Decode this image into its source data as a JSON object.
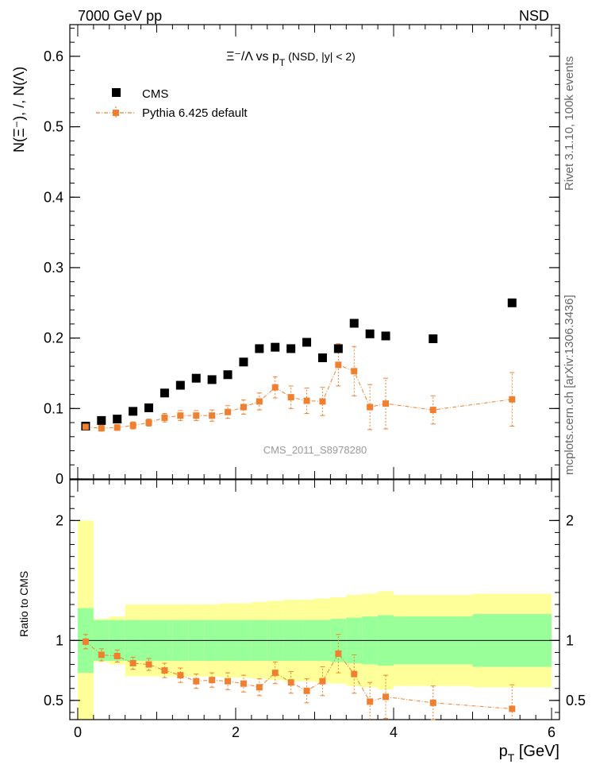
{
  "header": {
    "left": "7000 GeV pp",
    "right": "NSD"
  },
  "side_labels": {
    "rivet": "Rivet 3.1.10,  100k events",
    "mcplots": "mcplots.cern.ch [arXiv:1306.3436]"
  },
  "watermark": "CMS_2011_S8978280",
  "colors": {
    "mc": "#f08030",
    "band_inner": "#99ff99",
    "band_outer": "#ffff99",
    "data": "#000000"
  },
  "chart_data": [
    {
      "type": "scatter",
      "title_main": "Ξ⁻/Λ  vs p",
      "title_sub": "T",
      "title_tail": " (NSD, |y| < 2)",
      "ylabel": "N(Ξ⁻), /, N(Λ)",
      "xlim": [
        -0.1,
        6.1
      ],
      "ylim": [
        0,
        0.645
      ],
      "yticks": [
        0,
        0.1,
        0.2,
        0.3,
        0.4,
        0.5,
        0.6
      ],
      "ytick_labels": [
        "0",
        "0.1",
        "0.2",
        "0.3",
        "0.4",
        "0.5",
        "0.6"
      ],
      "legend": {
        "position": "top-left",
        "entries": [
          "CMS",
          "Pythia 6.425 default"
        ]
      },
      "series": [
        {
          "name": "CMS",
          "x": [
            0.1,
            0.3,
            0.5,
            0.7,
            0.9,
            1.1,
            1.3,
            1.5,
            1.7,
            1.9,
            2.1,
            2.3,
            2.5,
            2.7,
            2.9,
            3.1,
            3.3,
            3.5,
            3.7,
            3.9,
            4.5,
            5.5
          ],
          "y": [
            0.075,
            0.083,
            0.085,
            0.096,
            0.101,
            0.122,
            0.133,
            0.143,
            0.141,
            0.148,
            0.166,
            0.185,
            0.187,
            0.185,
            0.194,
            0.172,
            0.185,
            0.221,
            0.206,
            0.203,
            0.199,
            0.25
          ]
        },
        {
          "name": "Pythia 6.425 default",
          "x": [
            0.1,
            0.3,
            0.5,
            0.7,
            0.9,
            1.1,
            1.3,
            1.5,
            1.7,
            1.9,
            2.1,
            2.3,
            2.5,
            2.7,
            2.9,
            3.1,
            3.3,
            3.5,
            3.7,
            3.9,
            4.5,
            5.5
          ],
          "y": [
            0.074,
            0.072,
            0.073,
            0.076,
            0.08,
            0.087,
            0.09,
            0.09,
            0.09,
            0.095,
            0.102,
            0.11,
            0.13,
            0.116,
            0.111,
            0.11,
            0.162,
            0.153,
            0.102,
            0.107,
            0.098,
            0.113
          ],
          "yerr": [
            0.004,
            0.004,
            0.004,
            0.005,
            0.005,
            0.006,
            0.007,
            0.007,
            0.008,
            0.009,
            0.01,
            0.012,
            0.015,
            0.016,
            0.018,
            0.02,
            0.03,
            0.035,
            0.032,
            0.036,
            0.02,
            0.038
          ]
        }
      ]
    },
    {
      "type": "scatter",
      "ylabel": "Ratio to CMS",
      "xlabel_main": "p",
      "xlabel_sub": "T",
      "xlabel_tail": " [GeV]",
      "xlim": [
        -0.1,
        6.1
      ],
      "ylim": [
        0.34,
        2.34
      ],
      "xticks": [
        0,
        2,
        4,
        6
      ],
      "xtick_labels": [
        "0",
        "2",
        "4",
        "6"
      ],
      "yticks": [
        0.5,
        1,
        2
      ],
      "ytick_labels": [
        "0.5",
        "1",
        "2"
      ],
      "bands": {
        "edges": [
          0,
          0.2,
          0.4,
          0.6,
          0.8,
          1.0,
          1.2,
          1.4,
          1.6,
          1.8,
          2.0,
          2.2,
          2.4,
          2.6,
          2.8,
          3.0,
          3.2,
          3.4,
          3.6,
          3.8,
          4.0,
          5.0,
          6.0
        ],
        "inner": [
          0.27,
          0.17,
          0.17,
          0.17,
          0.17,
          0.17,
          0.17,
          0.17,
          0.17,
          0.17,
          0.17,
          0.17,
          0.17,
          0.17,
          0.17,
          0.17,
          0.18,
          0.19,
          0.2,
          0.21,
          0.2,
          0.22
        ],
        "outer": [
          1.0,
          0.18,
          0.2,
          0.3,
          0.3,
          0.3,
          0.3,
          0.3,
          0.3,
          0.31,
          0.31,
          0.32,
          0.33,
          0.34,
          0.34,
          0.35,
          0.36,
          0.38,
          0.39,
          0.41,
          0.38,
          0.39
        ]
      },
      "series": [
        {
          "name": "Pythia 6.425 default",
          "x": [
            0.1,
            0.3,
            0.5,
            0.7,
            0.9,
            1.1,
            1.3,
            1.5,
            1.7,
            1.9,
            2.1,
            2.3,
            2.5,
            2.7,
            2.9,
            3.1,
            3.3,
            3.5,
            3.7,
            3.9,
            4.5,
            5.5
          ],
          "y": [
            0.99,
            0.88,
            0.87,
            0.81,
            0.8,
            0.75,
            0.71,
            0.66,
            0.67,
            0.66,
            0.64,
            0.61,
            0.73,
            0.65,
            0.58,
            0.66,
            0.89,
            0.72,
            0.49,
            0.53,
            0.48,
            0.43
          ],
          "yerr": [
            0.06,
            0.05,
            0.05,
            0.05,
            0.05,
            0.06,
            0.06,
            0.06,
            0.06,
            0.07,
            0.07,
            0.07,
            0.09,
            0.09,
            0.1,
            0.12,
            0.16,
            0.16,
            0.16,
            0.18,
            0.14,
            0.2
          ]
        }
      ]
    }
  ]
}
